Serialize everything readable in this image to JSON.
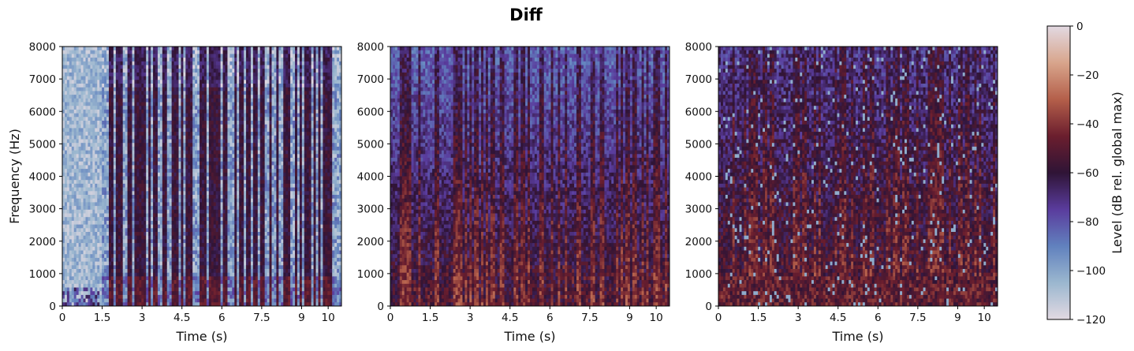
{
  "chart_data": {
    "type": "heatmap",
    "title": "Diff",
    "panels": [
      {
        "xlabel": "Time (s)",
        "ylabel": "Frequency (Hz)",
        "xlim": [
          0,
          10.5
        ],
        "ylim": [
          0,
          8000
        ],
        "xticks": [
          0,
          1.5,
          3,
          4.5,
          6,
          7.5,
          9,
          10
        ],
        "xtick_labels": [
          "0",
          "1.5",
          "3",
          "4.5",
          "6",
          "7.5",
          "9",
          "10"
        ],
        "yticks": [
          0,
          1000,
          2000,
          3000,
          4000,
          5000,
          6000,
          7000,
          8000
        ],
        "ytick_labels": [
          "0",
          "1000",
          "2000",
          "3000",
          "4000",
          "5000",
          "6000",
          "7000",
          "8000"
        ]
      },
      {
        "xlabel": "Time (s)",
        "ylabel": "",
        "xlim": [
          0,
          10.5
        ],
        "ylim": [
          0,
          8000
        ],
        "xticks": [
          0,
          1.5,
          3,
          4.5,
          6,
          7.5,
          9,
          10
        ],
        "xtick_labels": [
          "0",
          "1.5",
          "3",
          "4.5",
          "6",
          "7.5",
          "9",
          "10"
        ],
        "yticks": [
          0,
          1000,
          2000,
          3000,
          4000,
          5000,
          6000,
          7000,
          8000
        ],
        "ytick_labels": [
          "0",
          "1000",
          "2000",
          "3000",
          "4000",
          "5000",
          "6000",
          "7000",
          "8000"
        ]
      },
      {
        "xlabel": "Time (s)",
        "ylabel": "",
        "xlim": [
          0,
          10.5
        ],
        "ylim": [
          0,
          8000
        ],
        "xticks": [
          0,
          1.5,
          3,
          4.5,
          6,
          7.5,
          9,
          10
        ],
        "xtick_labels": [
          "0",
          "1.5",
          "3",
          "4.5",
          "6",
          "7.5",
          "9",
          "10"
        ],
        "yticks": [
          0,
          1000,
          2000,
          3000,
          4000,
          5000,
          6000,
          7000,
          8000
        ],
        "ytick_labels": [
          "0",
          "1000",
          "2000",
          "3000",
          "4000",
          "5000",
          "6000",
          "7000",
          "8000"
        ]
      }
    ],
    "colorbar": {
      "label": "Level (dB rel. global max)",
      "range": [
        -120,
        0
      ],
      "ticks": [
        0,
        -20,
        -40,
        -60,
        -80,
        -100,
        -120
      ],
      "tick_labels": [
        "0",
        "−20",
        "−40",
        "−60",
        "−80",
        "−100",
        "−120"
      ],
      "colormap": "twilight (upper half)"
    },
    "grid": false
  },
  "colors": {
    "cmap_stops": [
      "#e2d9e2",
      "#9bb7cf",
      "#6181be",
      "#5a3c9d",
      "#2f1436",
      "#6b1e2e",
      "#b45f4a",
      "#d8a58c",
      "#e2d9e2"
    ]
  }
}
